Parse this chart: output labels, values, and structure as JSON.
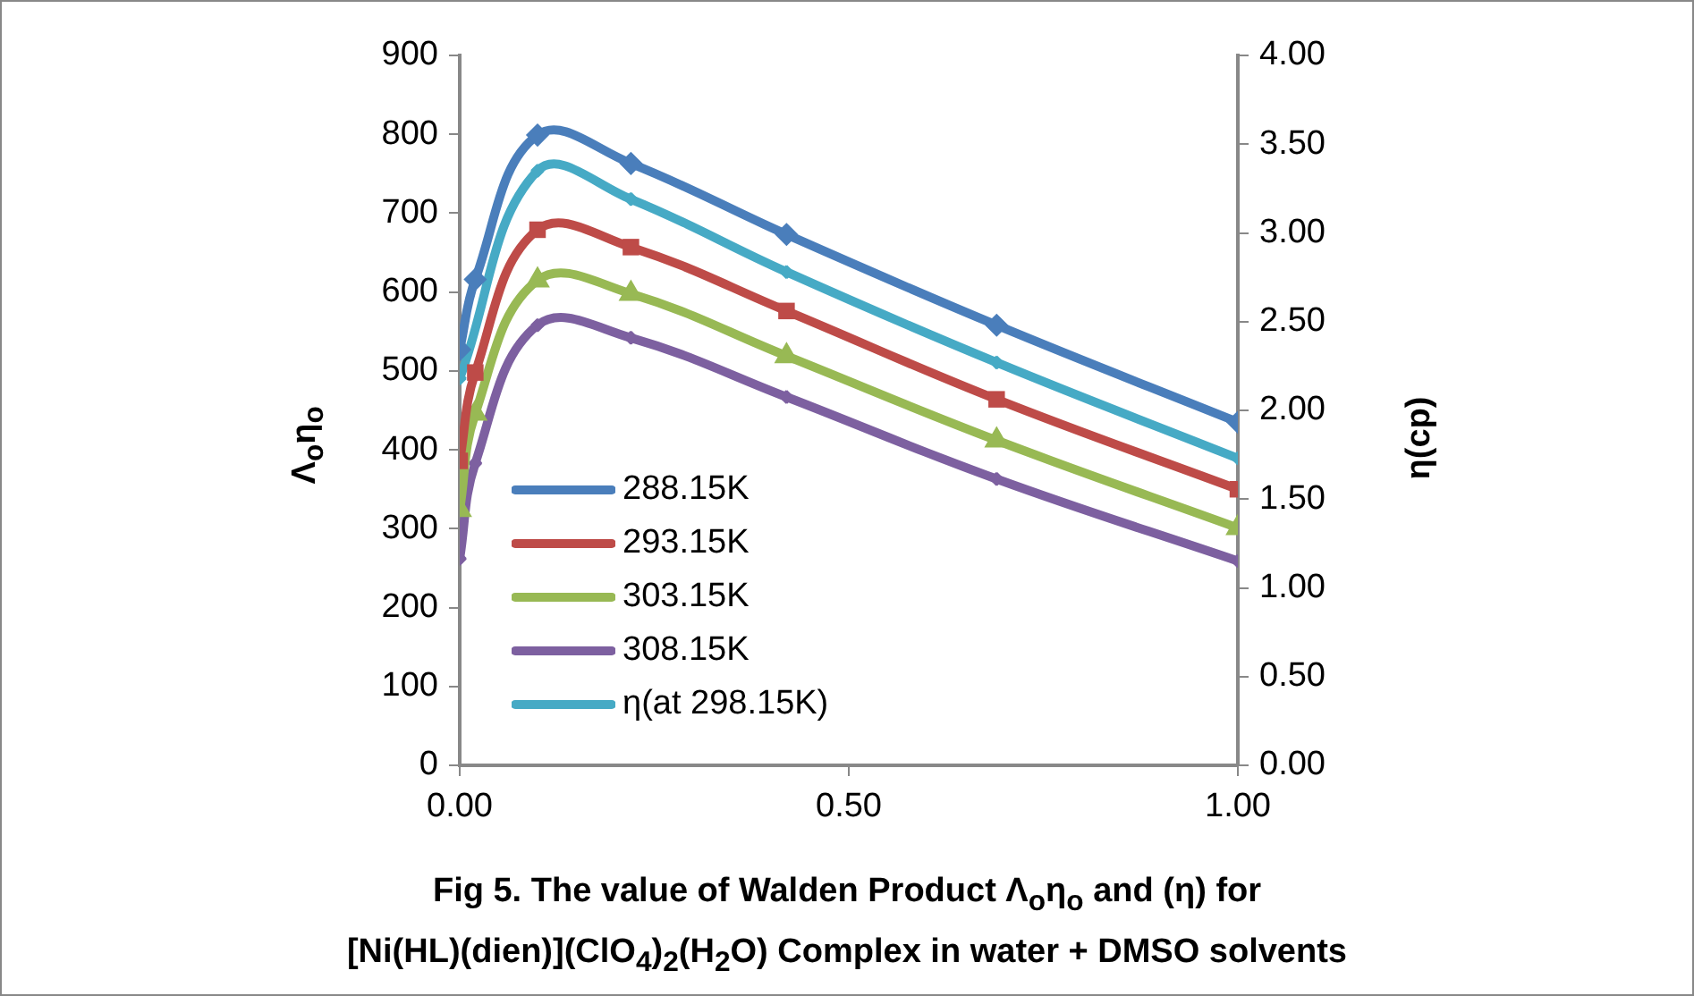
{
  "chart_data": {
    "type": "line",
    "title": "Fig 5. The value of Walden Product Λ$_{o}$η$_{o}$ and (η) for\n[Ni(HL)(dien)](ClO$_{4}$)$_{2}$(H$_{2}$O) Complex in water + DMSO solvents",
    "ylabel": "Λ$_{o}$η$_{o}$",
    "y2label": "η(cp)",
    "x": [
      0,
      0.02,
      0.1,
      0.22,
      0.42,
      0.69,
      1.0
    ],
    "series": [
      {
        "name": "288.15K",
        "color": "#4a7ebb",
        "marker": "diamond",
        "values": [
          527,
          616,
          799,
          763,
          673,
          558,
          435
        ]
      },
      {
        "name": "293.15K",
        "color": "#be4b48",
        "marker": "square",
        "values": [
          386,
          498,
          679,
          657,
          576,
          464,
          350
        ]
      },
      {
        "name": "303.15K",
        "color": "#98b954",
        "marker": "triangle",
        "values": [
          324,
          446,
          615,
          598,
          519,
          412,
          301
        ]
      },
      {
        "name": "308.15K",
        "color": "#7d60a0",
        "marker": "cross",
        "values": [
          262,
          383,
          558,
          542,
          467,
          363,
          259
        ]
      },
      {
        "name": "η(at 298.15K)",
        "color": "#46aac5",
        "marker": "cross",
        "axis": "y2",
        "values": [
          2.18,
          null,
          3.35,
          3.19,
          2.78,
          2.27,
          1.73
        ]
      }
    ],
    "xlim": [
      0,
      1
    ],
    "xticks": [
      {
        "value": 0,
        "label": "0.00"
      },
      {
        "value": 0.5,
        "label": "0.50"
      },
      {
        "value": 1,
        "label": "1.00"
      }
    ],
    "ylim": [
      0,
      900
    ],
    "yticks": [
      0,
      100,
      200,
      300,
      400,
      500,
      600,
      700,
      800,
      900
    ],
    "y2lim": [
      0,
      4
    ],
    "y2ticks": [
      {
        "value": 0,
        "label": "0.00"
      },
      {
        "value": 0.5,
        "label": "0.50"
      },
      {
        "value": 1,
        "label": "1.00"
      },
      {
        "value": 1.5,
        "label": "1.50"
      },
      {
        "value": 2,
        "label": "2.00"
      },
      {
        "value": 2.5,
        "label": "2.50"
      },
      {
        "value": 3,
        "label": "3.00"
      },
      {
        "value": 3.5,
        "label": "3.50"
      },
      {
        "value": 4,
        "label": "4.00"
      }
    ],
    "grid": false,
    "legend": "bottom left",
    "line_style": "solid"
  }
}
